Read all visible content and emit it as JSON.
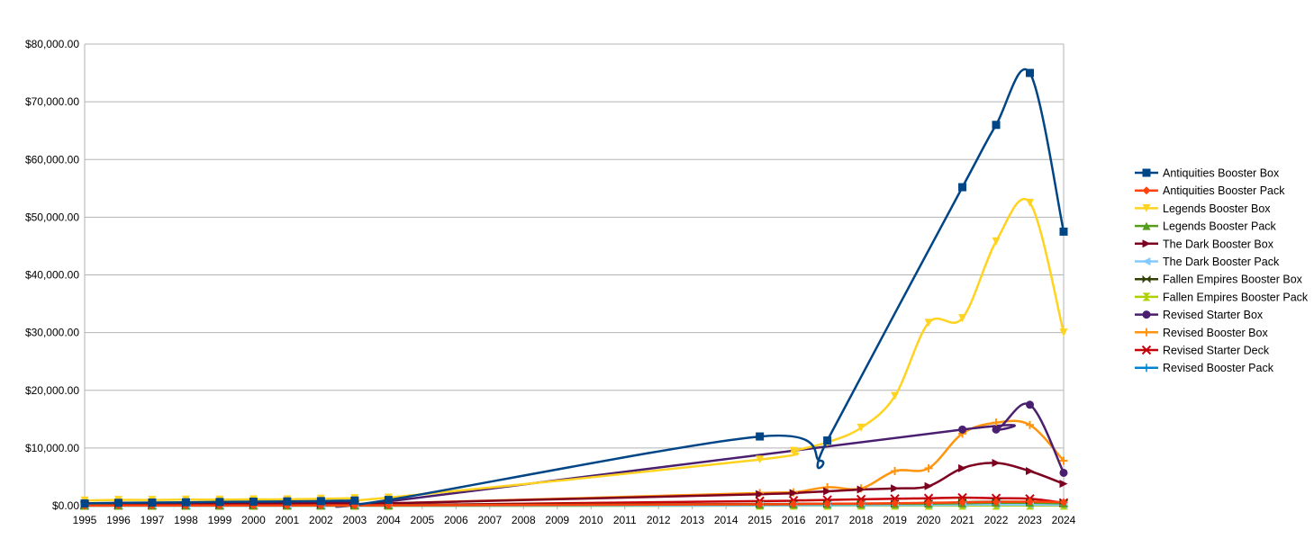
{
  "chart_data": {
    "type": "line",
    "title": "",
    "xlabel": "",
    "ylabel": "",
    "xlim": [
      1995,
      2024
    ],
    "ylim": [
      0,
      80000
    ],
    "y_ticks": [
      0,
      10000,
      20000,
      30000,
      40000,
      50000,
      60000,
      70000,
      80000
    ],
    "y_tick_labels": [
      "$0.00",
      "$10,000.00",
      "$20,000.00",
      "$30,000.00",
      "$40,000.00",
      "$50,000.00",
      "$60,000.00",
      "$70,000.00",
      "$80,000.00"
    ],
    "x_tick_labels": [
      "1995",
      "1996",
      "1997",
      "1998",
      "1999",
      "2000",
      "2001",
      "2002",
      "2003",
      "2004",
      "2005",
      "2006",
      "2007",
      "2008",
      "2009",
      "2010",
      "2011",
      "2012",
      "2013",
      "2014",
      "2015",
      "2016",
      "2017",
      "2018",
      "2019",
      "2020",
      "2021",
      "2022",
      "2023",
      "2024"
    ],
    "grid": "horizontal",
    "legend_position": "right",
    "series": [
      {
        "name": "Antiquities Booster Box",
        "color": "#004586",
        "marker": "square",
        "x": [
          1995,
          1996,
          1997,
          1998,
          1999,
          2000,
          2001,
          2002,
          2003,
          2004,
          2015,
          2016.8,
          2017,
          2021,
          2022,
          2023,
          2024
        ],
        "y": [
          400,
          500,
          550,
          600,
          650,
          700,
          750,
          800,
          900,
          1000,
          12000,
          7800,
          11300,
          55200,
          66000,
          75000,
          47500
        ]
      },
      {
        "name": "Antiquities Booster Pack",
        "color": "#ff420e",
        "marker": "diamond",
        "x": [
          1995,
          1996,
          1997,
          1998,
          1999,
          2000,
          2001,
          2002,
          2003,
          2004,
          2015,
          2016,
          2017,
          2018,
          2019,
          2020,
          2021,
          2022,
          2023,
          2024
        ],
        "y": [
          20,
          25,
          30,
          35,
          40,
          45,
          50,
          55,
          60,
          70,
          250,
          300,
          350,
          380,
          420,
          500,
          600,
          650,
          700,
          600
        ]
      },
      {
        "name": "Legends Booster Box",
        "color": "#ffd320",
        "marker": "triangle-down",
        "x": [
          1995,
          1996,
          1997,
          1998,
          1999,
          2000,
          2001,
          2002,
          2003,
          2004,
          2015,
          2016,
          2017,
          2018,
          2019,
          2020,
          2021,
          2022,
          2023,
          2024
        ],
        "y": [
          900,
          1000,
          1000,
          1050,
          1050,
          1100,
          1100,
          1200,
          1300,
          1400,
          8000,
          9500,
          11000,
          13500,
          19000,
          31700,
          32500,
          45800,
          52500,
          30000
        ]
      },
      {
        "name": "Legends Booster Pack",
        "color": "#579d1c",
        "marker": "triangle-up",
        "x": [
          1995,
          1996,
          1997,
          1998,
          1999,
          2000,
          2001,
          2002,
          2003,
          2004,
          2015,
          2016,
          2017,
          2018,
          2019,
          2020,
          2021,
          2022,
          2023,
          2024
        ],
        "y": [
          30,
          30,
          35,
          35,
          40,
          40,
          45,
          45,
          50,
          60,
          200,
          250,
          280,
          300,
          320,
          350,
          400,
          500,
          500,
          400
        ]
      },
      {
        "name": "The Dark Booster Box",
        "color": "#7e0021",
        "marker": "triangle-right",
        "x": [
          1995,
          1996,
          1997,
          1998,
          1999,
          2000,
          2001,
          2002,
          2003,
          2004,
          2015,
          2016,
          2017,
          2018,
          2019,
          2020,
          2021,
          2022,
          2023,
          2024
        ],
        "y": [
          200,
          220,
          240,
          260,
          280,
          300,
          320,
          340,
          360,
          400,
          2000,
          2200,
          2500,
          2800,
          3000,
          3400,
          6500,
          7400,
          6000,
          3800
        ]
      },
      {
        "name": "The Dark Booster Pack",
        "color": "#83caff",
        "marker": "triangle-left",
        "x": [
          1995,
          1996,
          1997,
          1998,
          1999,
          2000,
          2001,
          2002,
          2003,
          2004,
          2015,
          2016,
          2017,
          2018,
          2019,
          2020,
          2021,
          2022,
          2023,
          2024
        ],
        "y": [
          5,
          5,
          6,
          6,
          7,
          7,
          8,
          8,
          9,
          10,
          50,
          60,
          70,
          80,
          90,
          100,
          150,
          170,
          160,
          120
        ]
      },
      {
        "name": "Fallen Empires Booster Box",
        "color": "#314004",
        "marker": "bowtie",
        "x": [
          1995,
          1996,
          1997,
          1998,
          1999,
          2000,
          2001,
          2002,
          2003,
          2004,
          2015,
          2016,
          2017,
          2018,
          2019,
          2020,
          2021,
          2022,
          2023,
          2024
        ],
        "y": [
          100,
          100,
          100,
          100,
          100,
          100,
          100,
          100,
          100,
          120,
          300,
          320,
          340,
          360,
          380,
          400,
          600,
          700,
          650,
          500
        ]
      },
      {
        "name": "Fallen Empires Booster Pack",
        "color": "#aecf00",
        "marker": "hourglass",
        "x": [
          1995,
          1996,
          1997,
          1998,
          1999,
          2000,
          2001,
          2002,
          2003,
          2004,
          2015,
          2016,
          2017,
          2018,
          2019,
          2020,
          2021,
          2022,
          2023,
          2024
        ],
        "y": [
          2,
          2,
          2,
          2,
          2,
          2,
          2,
          2,
          3,
          3,
          10,
          10,
          12,
          12,
          14,
          15,
          20,
          25,
          25,
          20
        ]
      },
      {
        "name": "Revised Starter Box",
        "color": "#4b1f6f",
        "marker": "circle",
        "x": [
          1995,
          1996,
          1997,
          1998,
          1999,
          2000,
          2001,
          2002,
          2003,
          2004,
          2021,
          2022,
          2023,
          2024
        ],
        "y": [
          300,
          350,
          400,
          450,
          500,
          550,
          600,
          650,
          700,
          750,
          13200,
          13200,
          17500,
          5700
        ]
      },
      {
        "name": "Revised Booster Box",
        "color": "#ff950e",
        "marker": "cross",
        "x": [
          1995,
          1996,
          1997,
          1998,
          1999,
          2000,
          2001,
          2002,
          2003,
          2004,
          2015,
          2016,
          2017,
          2018,
          2019,
          2020,
          2021,
          2022,
          2023,
          2024
        ],
        "y": [
          200,
          220,
          240,
          260,
          280,
          300,
          320,
          340,
          360,
          400,
          2200,
          2300,
          3200,
          3000,
          6000,
          6500,
          12500,
          14400,
          14000,
          7800
        ]
      },
      {
        "name": "Revised Starter Deck",
        "color": "#c5000b",
        "marker": "x",
        "x": [
          1995,
          1996,
          1997,
          1998,
          1999,
          2000,
          2001,
          2002,
          2003,
          2004,
          2015,
          2016,
          2017,
          2018,
          2019,
          2020,
          2021,
          2022,
          2023,
          2024
        ],
        "y": [
          50,
          55,
          60,
          65,
          70,
          75,
          80,
          85,
          90,
          100,
          800,
          900,
          1000,
          1100,
          1200,
          1300,
          1400,
          1300,
          1200,
          500
        ]
      },
      {
        "name": "Revised Booster Pack",
        "color": "#0084d1",
        "marker": "plus",
        "x": [
          1995,
          1996,
          1997,
          1998,
          1999,
          2000,
          2001,
          2002,
          2003,
          2004,
          2015,
          2016,
          2017,
          2018,
          2019,
          2020,
          2021,
          2022,
          2023,
          2024
        ],
        "y": [
          3,
          3,
          3,
          4,
          4,
          4,
          5,
          5,
          5,
          6,
          30,
          35,
          40,
          45,
          50,
          60,
          80,
          90,
          90,
          70
        ]
      }
    ]
  }
}
